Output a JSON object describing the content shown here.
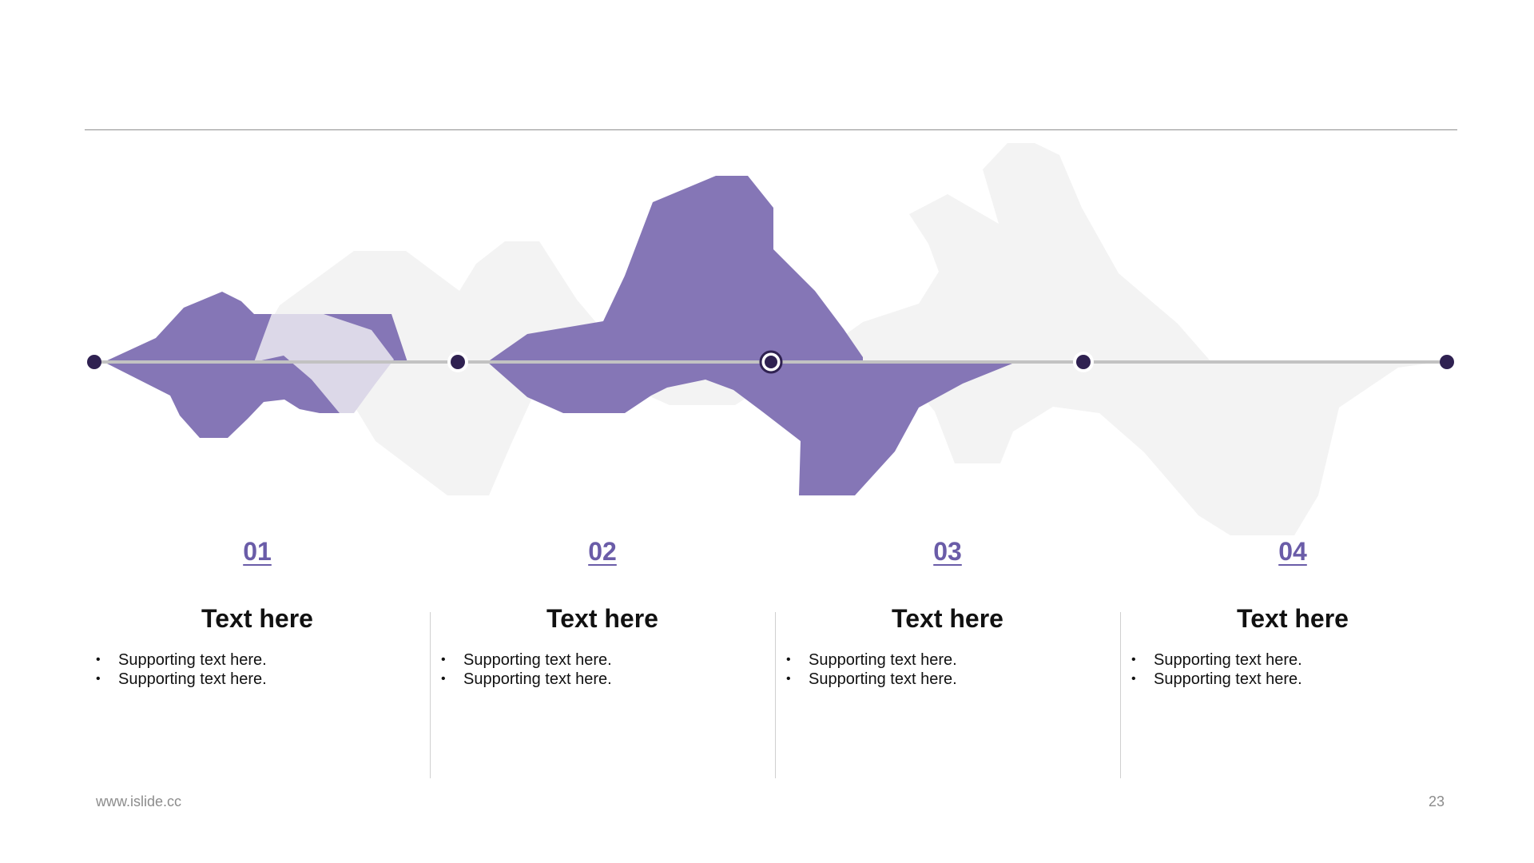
{
  "colors": {
    "accent": "#8576b6",
    "accent_light": "#dcd8e8",
    "shadow": "#f3f3f3",
    "node": "#2f2151",
    "axis": "#c2c2c2",
    "number": "#6a5ca8"
  },
  "steps": [
    {
      "number": "01",
      "title": "Text here",
      "bullets": [
        "Supporting text here.",
        "Supporting text here."
      ]
    },
    {
      "number": "02",
      "title": "Text here",
      "bullets": [
        "Supporting text here.",
        "Supporting text here."
      ]
    },
    {
      "number": "03",
      "title": "Text here",
      "bullets": [
        "Supporting text here.",
        "Supporting text here."
      ]
    },
    {
      "number": "04",
      "title": "Text here",
      "bullets": [
        "Supporting text here.",
        "Supporting text here."
      ]
    }
  ],
  "timeline": {
    "node_count": 5,
    "highlighted_node": 3
  },
  "footer": {
    "url": "www.islide.cc",
    "page": "23"
  }
}
